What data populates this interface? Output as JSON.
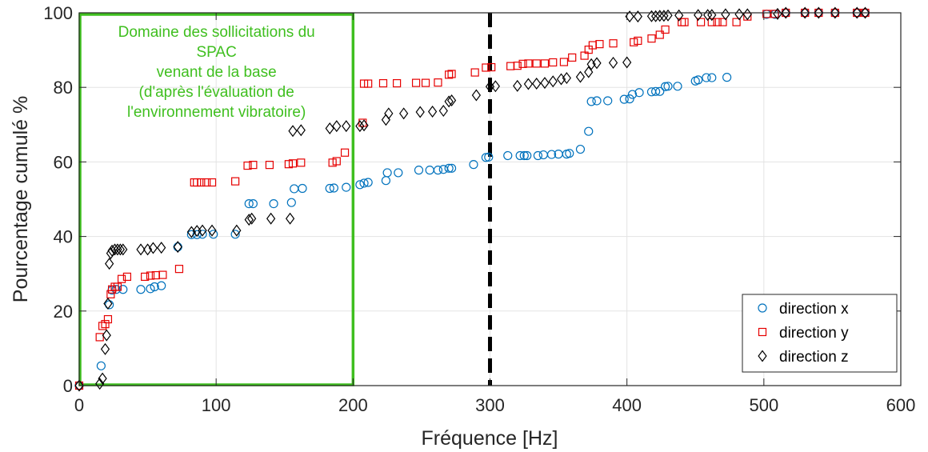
{
  "chart_data": {
    "type": "scatter",
    "xlabel": "Fréquence [Hz]",
    "ylabel": "Pourcentage cumulé %",
    "xlim": [
      0,
      600
    ],
    "ylim": [
      0,
      100
    ],
    "xticks": [
      0,
      100,
      200,
      300,
      400,
      500,
      600
    ],
    "yticks": [
      0,
      20,
      40,
      60,
      80,
      100
    ],
    "grid": true,
    "legend_position": "bottom-right",
    "vertical_line": {
      "x": 300,
      "style": "dashed",
      "color": "#000000"
    },
    "annotation_box": {
      "x_range": [
        0,
        200
      ],
      "y_range": [
        0,
        100
      ],
      "color": "#3fbf1f",
      "lines": [
        "Domaine des sollicitations du",
        "SPAC",
        "venant de la base",
        "(d'après l'évaluation de",
        "l'environnement vibratoire)"
      ]
    },
    "series": [
      {
        "name": "direction x",
        "marker": "circle",
        "color": "#0072bd",
        "points": [
          [
            0,
            0
          ],
          [
            16,
            5.3
          ],
          [
            22,
            21.7
          ],
          [
            24,
            25.6
          ],
          [
            27,
            25.8
          ],
          [
            32,
            25.8
          ],
          [
            45,
            25.8
          ],
          [
            52,
            26
          ],
          [
            55,
            26.5
          ],
          [
            60,
            26.8
          ],
          [
            72,
            37.2
          ],
          [
            82,
            40.5
          ],
          [
            86,
            40.5
          ],
          [
            90,
            40.6
          ],
          [
            98,
            40.6
          ],
          [
            114,
            40.6
          ],
          [
            124,
            48.8
          ],
          [
            127,
            48.8
          ],
          [
            142,
            48.8
          ],
          [
            155,
            49.1
          ],
          [
            157,
            52.8
          ],
          [
            163,
            52.9
          ],
          [
            183,
            52.9
          ],
          [
            186,
            53
          ],
          [
            195,
            53.2
          ],
          [
            205,
            53.9
          ],
          [
            208,
            54.3
          ],
          [
            211,
            54.5
          ],
          [
            224,
            55
          ],
          [
            225,
            57.1
          ],
          [
            233,
            57.1
          ],
          [
            248,
            57.8
          ],
          [
            256,
            57.8
          ],
          [
            262,
            57.8
          ],
          [
            266,
            58
          ],
          [
            270,
            58.3
          ],
          [
            272,
            58.3
          ],
          [
            288,
            59.3
          ],
          [
            297,
            61.2
          ],
          [
            299,
            61.3
          ],
          [
            313,
            61.7
          ],
          [
            322,
            61.7
          ],
          [
            325,
            61.7
          ],
          [
            327,
            61.7
          ],
          [
            335,
            61.7
          ],
          [
            339,
            61.9
          ],
          [
            345,
            62
          ],
          [
            350,
            62.1
          ],
          [
            356,
            62.1
          ],
          [
            358,
            62.3
          ],
          [
            366,
            63.4
          ],
          [
            372,
            68.2
          ],
          [
            374,
            76.2
          ],
          [
            378,
            76.4
          ],
          [
            386,
            76.4
          ],
          [
            398,
            76.8
          ],
          [
            402,
            76.9
          ],
          [
            404,
            78.1
          ],
          [
            409,
            78.6
          ],
          [
            418,
            78.8
          ],
          [
            421,
            78.9
          ],
          [
            424,
            78.9
          ],
          [
            428,
            80.2
          ],
          [
            430,
            80.3
          ],
          [
            437,
            80.3
          ],
          [
            450,
            81.7
          ],
          [
            452,
            82
          ],
          [
            458,
            82.6
          ],
          [
            462,
            82.6
          ],
          [
            473,
            82.7
          ],
          [
            502,
            99.6
          ],
          [
            508,
            99.6
          ],
          [
            516,
            100
          ],
          [
            530,
            100
          ],
          [
            540,
            100
          ],
          [
            552,
            100
          ],
          [
            568,
            100
          ],
          [
            574,
            100
          ]
        ]
      },
      {
        "name": "direction y",
        "marker": "square",
        "color": "#e60000",
        "points": [
          [
            0,
            0
          ],
          [
            15,
            13
          ],
          [
            17,
            16
          ],
          [
            19,
            16.5
          ],
          [
            21,
            17.8
          ],
          [
            23,
            24.5
          ],
          [
            24,
            25.8
          ],
          [
            26,
            26.5
          ],
          [
            28,
            26.5
          ],
          [
            31,
            28.6
          ],
          [
            35,
            29.2
          ],
          [
            48,
            29.2
          ],
          [
            52,
            29.5
          ],
          [
            56,
            29.6
          ],
          [
            61,
            29.7
          ],
          [
            73,
            31.3
          ],
          [
            84,
            54.5
          ],
          [
            86,
            54.5
          ],
          [
            89,
            54.5
          ],
          [
            93,
            54.5
          ],
          [
            97,
            54.5
          ],
          [
            114,
            54.8
          ],
          [
            123,
            59
          ],
          [
            127,
            59.2
          ],
          [
            139,
            59.2
          ],
          [
            153,
            59.4
          ],
          [
            156,
            59.6
          ],
          [
            162,
            59.8
          ],
          [
            185,
            59.8
          ],
          [
            188,
            60.2
          ],
          [
            194,
            62.5
          ],
          [
            207,
            70.5
          ],
          [
            208,
            81
          ],
          [
            211,
            81
          ],
          [
            222,
            81.1
          ],
          [
            232,
            81.1
          ],
          [
            246,
            81.2
          ],
          [
            253,
            81.2
          ],
          [
            262,
            81.3
          ],
          [
            270,
            83.4
          ],
          [
            272,
            83.6
          ],
          [
            289,
            84
          ],
          [
            297,
            85.3
          ],
          [
            301,
            85.4
          ],
          [
            315,
            85.7
          ],
          [
            320,
            85.8
          ],
          [
            324,
            86.3
          ],
          [
            328,
            86.4
          ],
          [
            334,
            86.4
          ],
          [
            340,
            86.4
          ],
          [
            346,
            86.7
          ],
          [
            354,
            86.8
          ],
          [
            360,
            88
          ],
          [
            369,
            88.5
          ],
          [
            372,
            90.1
          ],
          [
            375,
            91.3
          ],
          [
            380,
            91.6
          ],
          [
            390,
            91.8
          ],
          [
            405,
            92.1
          ],
          [
            408,
            92.5
          ],
          [
            418,
            93.1
          ],
          [
            424,
            94.1
          ],
          [
            428,
            95.5
          ],
          [
            440,
            97.5
          ],
          [
            442,
            97.5
          ],
          [
            454,
            97.5
          ],
          [
            462,
            97.5
          ],
          [
            466,
            97.5
          ],
          [
            470,
            97.5
          ],
          [
            480,
            97.5
          ],
          [
            488,
            99
          ],
          [
            502,
            99.7
          ],
          [
            508,
            99.7
          ],
          [
            516,
            100
          ],
          [
            530,
            100
          ],
          [
            540,
            100
          ],
          [
            552,
            100
          ],
          [
            568,
            100
          ],
          [
            574,
            100
          ]
        ]
      },
      {
        "name": "direction z",
        "marker": "diamond",
        "color": "#000000",
        "points": [
          [
            0,
            0
          ],
          [
            15,
            0.5
          ],
          [
            17,
            1.9
          ],
          [
            19,
            9.8
          ],
          [
            20,
            13.5
          ],
          [
            21,
            22
          ],
          [
            22,
            32.7
          ],
          [
            23,
            35.5
          ],
          [
            24,
            36.2
          ],
          [
            26,
            36.5
          ],
          [
            28,
            36.5
          ],
          [
            30,
            36.5
          ],
          [
            32,
            36.5
          ],
          [
            45,
            36.5
          ],
          [
            50,
            36.5
          ],
          [
            54,
            36.9
          ],
          [
            60,
            37
          ],
          [
            72,
            37.2
          ],
          [
            82,
            41.2
          ],
          [
            86,
            41.5
          ],
          [
            90,
            41.6
          ],
          [
            97,
            41.6
          ],
          [
            115,
            41.6
          ],
          [
            124,
            44.5
          ],
          [
            126,
            44.8
          ],
          [
            140,
            44.8
          ],
          [
            154,
            44.8
          ],
          [
            156,
            68.3
          ],
          [
            162,
            68.5
          ],
          [
            183,
            69
          ],
          [
            188,
            69.6
          ],
          [
            195,
            69.6
          ],
          [
            205,
            69.6
          ],
          [
            208,
            69.8
          ],
          [
            224,
            71.3
          ],
          [
            226,
            73
          ],
          [
            237,
            73
          ],
          [
            249,
            73.4
          ],
          [
            258,
            73.5
          ],
          [
            266,
            73.7
          ],
          [
            270,
            76.2
          ],
          [
            272,
            76.5
          ],
          [
            290,
            77.9
          ],
          [
            300,
            80.2
          ],
          [
            304,
            80.3
          ],
          [
            320,
            80.4
          ],
          [
            328,
            80.9
          ],
          [
            334,
            81
          ],
          [
            340,
            81.2
          ],
          [
            346,
            81.6
          ],
          [
            352,
            82.2
          ],
          [
            356,
            82.5
          ],
          [
            366,
            82.8
          ],
          [
            372,
            84.1
          ],
          [
            374,
            86.2
          ],
          [
            378,
            86.5
          ],
          [
            390,
            86.6
          ],
          [
            400,
            86.7
          ],
          [
            402,
            99
          ],
          [
            408,
            99
          ],
          [
            418,
            99.1
          ],
          [
            421,
            99.1
          ],
          [
            424,
            99.2
          ],
          [
            427,
            99.2
          ],
          [
            430,
            99.3
          ],
          [
            438,
            99.3
          ],
          [
            452,
            99.4
          ],
          [
            459,
            99.4
          ],
          [
            462,
            99.4
          ],
          [
            472,
            99.6
          ],
          [
            482,
            99.6
          ],
          [
            488,
            99.6
          ],
          [
            510,
            99.7
          ],
          [
            516,
            100
          ],
          [
            530,
            100
          ],
          [
            540,
            100
          ],
          [
            552,
            100
          ],
          [
            568,
            100
          ],
          [
            574,
            100
          ]
        ]
      }
    ]
  }
}
